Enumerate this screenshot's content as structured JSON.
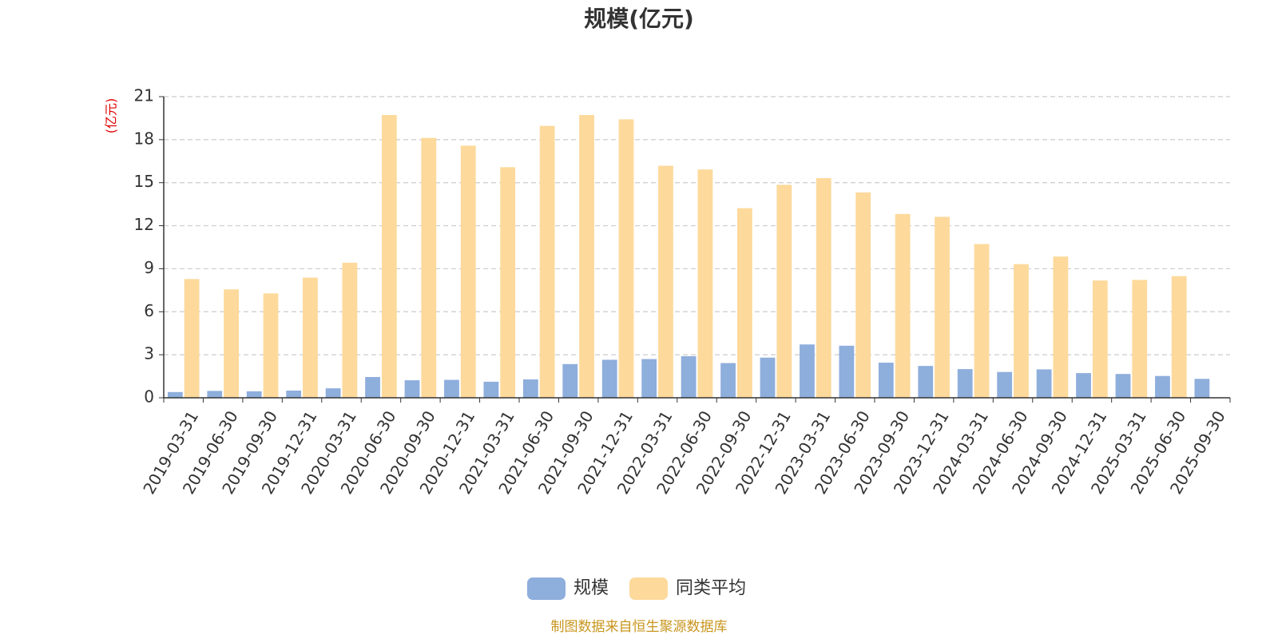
{
  "chart_data": {
    "type": "bar",
    "title": "规模(亿元)",
    "ylabel": "(亿元)",
    "xlabel": "",
    "ylim": [
      0,
      21
    ],
    "yticks": [
      0,
      3,
      6,
      9,
      12,
      15,
      18,
      21
    ],
    "grid": true,
    "legend_position": "bottom-center",
    "categories": [
      "2019-03-31",
      "2019-06-30",
      "2019-09-30",
      "2019-12-31",
      "2020-03-31",
      "2020-06-30",
      "2020-09-30",
      "2020-12-31",
      "2021-03-31",
      "2021-06-30",
      "2021-09-30",
      "2021-12-31",
      "2022-03-31",
      "2022-06-30",
      "2022-09-30",
      "2022-12-31",
      "2023-03-31",
      "2023-06-30",
      "2023-09-30",
      "2023-12-31",
      "2024-03-31",
      "2024-06-30",
      "2024-09-30",
      "2024-12-31",
      "2025-03-31",
      "2025-06-30",
      "2025-09-30"
    ],
    "series": [
      {
        "name": "规模",
        "color": "#8eaedc",
        "values": [
          0.4,
          0.48,
          0.45,
          0.5,
          0.66,
          1.45,
          1.22,
          1.25,
          1.12,
          1.28,
          2.35,
          2.65,
          2.7,
          2.9,
          2.42,
          2.8,
          3.72,
          3.63,
          2.45,
          2.22,
          2.0,
          1.8,
          1.98,
          1.72,
          1.66,
          1.52,
          1.32
        ]
      },
      {
        "name": "同类平均",
        "color": "#fdd99b",
        "values": [
          8.28,
          7.56,
          7.28,
          8.38,
          9.42,
          19.72,
          18.12,
          17.58,
          16.08,
          18.96,
          19.72,
          19.42,
          16.18,
          15.92,
          13.22,
          14.85,
          15.32,
          14.32,
          12.82,
          12.62,
          10.72,
          9.32,
          9.85,
          8.18,
          8.22,
          8.48,
          null
        ]
      }
    ]
  },
  "footer": {
    "source": "制图数据来自恒生聚源数据库"
  }
}
